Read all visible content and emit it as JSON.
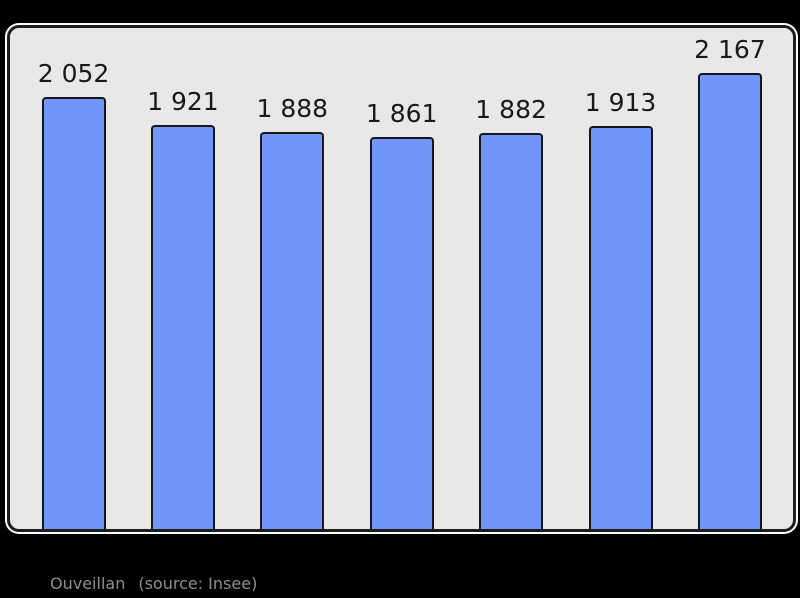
{
  "chart_data": {
    "type": "bar",
    "values": [
      2052,
      1921,
      1888,
      1861,
      1882,
      1913,
      2167
    ],
    "labels": [
      "2 052",
      "1 921",
      "1 888",
      "1 861",
      "1 882",
      "1 913",
      "2 167"
    ],
    "ylim": [
      0,
      2167
    ],
    "grid": false,
    "legend": null,
    "value_labels_position": "above-bars",
    "bar_color": "#7195f8",
    "bar_border_color": "#17171b",
    "value_label_color": "#191919"
  },
  "caption": {
    "name": "Ouveillan",
    "source": "(source: Insee)"
  },
  "colors": {
    "background": "#000000",
    "panel_bg": "#e8e8e8",
    "panel_border": "#1d1d1d",
    "panel_glow": "#ffffff",
    "caption_text": "#8f8f8f"
  }
}
